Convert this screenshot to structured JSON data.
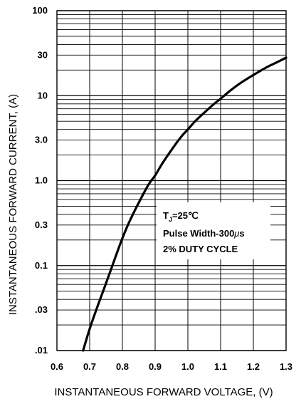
{
  "chart_data": {
    "type": "line",
    "xlabel": "INSTANTANEOUS FORWARD VOLTAGE, (V)",
    "ylabel": "INSTANTANEOUS FORWARD CURRENT, (A)",
    "xlim": [
      0.6,
      1.3
    ],
    "ylim": [
      0.01,
      100
    ],
    "yscale": "log",
    "grid": true,
    "x_ticks": [
      "0.6",
      "0.7",
      "0.8",
      "0.9",
      "1.0",
      "1.1",
      "1.2",
      "1.3"
    ],
    "y_ticks": [
      {
        "value": 100,
        "label": "100"
      },
      {
        "value": 30,
        "label": "30"
      },
      {
        "value": 10,
        "label": "10"
      },
      {
        "value": 3,
        "label": "3.0"
      },
      {
        "value": 1,
        "label": "1.0"
      },
      {
        "value": 0.3,
        "label": "0.3"
      },
      {
        "value": 0.1,
        "label": "0.1"
      },
      {
        "value": 0.03,
        "label": ".03"
      },
      {
        "value": 0.01,
        "label": ".01"
      }
    ],
    "series": [
      {
        "x": [
          0.68,
          0.7,
          0.72,
          0.75,
          0.78,
          0.8,
          0.82,
          0.85,
          0.88,
          0.9,
          0.92,
          0.95,
          0.98,
          1.0,
          1.02,
          1.05,
          1.08,
          1.1,
          1.13,
          1.16,
          1.2,
          1.24,
          1.27,
          1.3
        ],
        "y": [
          0.01,
          0.018,
          0.03,
          0.062,
          0.13,
          0.21,
          0.32,
          0.55,
          0.9,
          1.15,
          1.55,
          2.3,
          3.3,
          4.0,
          4.9,
          6.3,
          8.0,
          9.2,
          11.5,
          14.0,
          17.5,
          21.5,
          24.5,
          28.0
        ]
      }
    ],
    "annotation": {
      "tj_prefix": "T",
      "tj_sub": "J",
      "tj_value": "=25℃",
      "line2_prefix": "Pulse Width-300",
      "line2_mu": "μ",
      "line2_suffix": "s",
      "line3": "2% DUTY CYCLE"
    }
  }
}
